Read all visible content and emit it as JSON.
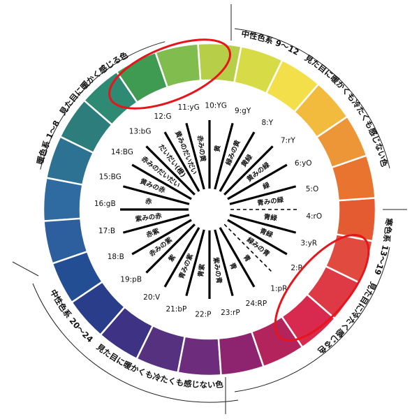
{
  "diagram": {
    "segments": [
      {
        "code": "1:pR",
        "color": "#d8294e"
      },
      {
        "code": "2:R",
        "color": "#de3a45"
      },
      {
        "code": "3:yR",
        "color": "#e14b3f"
      },
      {
        "code": "4:rO",
        "color": "#e45b31"
      },
      {
        "code": "5:O",
        "color": "#e87430"
      },
      {
        "code": "6:yO",
        "color": "#ec9637"
      },
      {
        "code": "7:rY",
        "color": "#f2bb3e"
      },
      {
        "code": "8:Y",
        "color": "#f2df49"
      },
      {
        "code": "9:gY",
        "color": "#d7dc46"
      },
      {
        "code": "10:YG",
        "color": "#b7cf48"
      },
      {
        "code": "11:yG",
        "color": "#81bc4f"
      },
      {
        "code": "12:G",
        "color": "#3f9a52"
      },
      {
        "code": "13:bG",
        "color": "#2f8a73"
      },
      {
        "code": "14:BG",
        "color": "#2c7d7c"
      },
      {
        "code": "15:BG",
        "color": "#2d7293"
      },
      {
        "code": "16:gB",
        "color": "#2f6aa0"
      },
      {
        "code": "17:B",
        "color": "#2d5e9e"
      },
      {
        "code": "18:B",
        "color": "#244e93"
      },
      {
        "code": "19:pB",
        "color": "#2a3d8a"
      },
      {
        "code": "20:V",
        "color": "#3d3284"
      },
      {
        "code": "21:bP",
        "color": "#55317f"
      },
      {
        "code": "22:P",
        "color": "#6e2c7d"
      },
      {
        "code": "23:rP",
        "color": "#8e2470"
      },
      {
        "code": "24:RP",
        "color": "#b4245c"
      }
    ],
    "spokes": [
      {
        "text": "黄",
        "style": "solid"
      },
      {
        "text": "緑みの黄",
        "style": "solid"
      },
      {
        "text": "黄緑",
        "style": "solid"
      },
      {
        "text": "黄みの緑",
        "style": "solid"
      },
      {
        "text": "緑",
        "style": "solid"
      },
      {
        "text": "青みの緑",
        "style": "solid"
      },
      {
        "text": "青緑",
        "style": "dashed"
      },
      {
        "text": "青緑",
        "style": "solid"
      },
      {
        "text": "緑みの青",
        "style": "solid"
      },
      {
        "text": "青",
        "style": "dashed"
      },
      {
        "text": "青",
        "style": "solid"
      },
      {
        "text": "紫みの青",
        "style": "solid"
      },
      {
        "text": "青紫",
        "style": "solid"
      },
      {
        "text": "青みの紫",
        "style": "solid"
      },
      {
        "text": "紫",
        "style": "solid"
      },
      {
        "text": "赤みの紫",
        "style": "solid"
      },
      {
        "text": "赤紫",
        "style": "solid"
      },
      {
        "text": "紫みの赤",
        "style": "solid"
      },
      {
        "text": "赤",
        "style": "solid"
      },
      {
        "text": "黄みの赤",
        "style": "solid"
      },
      {
        "text": "赤みのだいだい",
        "style": "solid"
      },
      {
        "text": "だいだい(橙)",
        "style": "solid"
      },
      {
        "text": "黄みのだいだい",
        "style": "solid"
      },
      {
        "text": "赤みの黄",
        "style": "solid"
      }
    ],
    "groups": {
      "warm": "暖色系 1〜8　見た目に暖かく感じる色",
      "neutral_a": "中性色系 9〜12　見た目に暖かくも冷たくも感じない色",
      "cool": "寒色系 13〜19　見た目に冷たく感じる色",
      "neutral_b": "中性色系 20〜24　見た目に暖かくも冷たくも感じない色"
    },
    "highlight_color": "#e8141c"
  }
}
